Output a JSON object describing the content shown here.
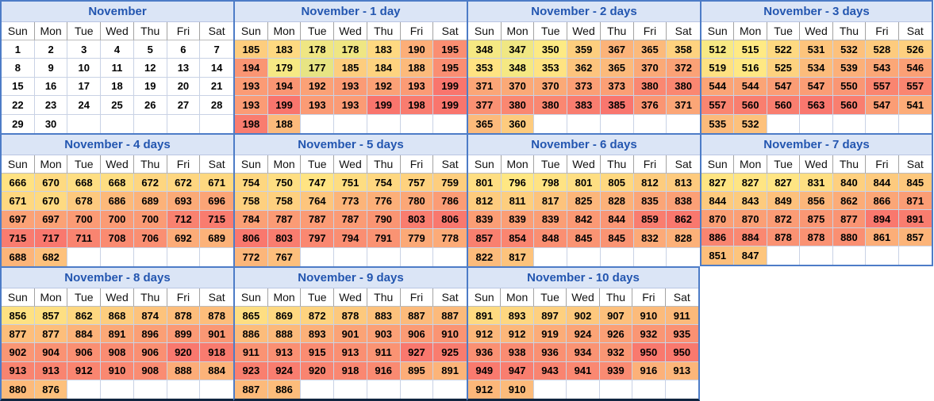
{
  "page": {
    "description": "Calendar heatmap report: November values offset by 0-10 days"
  },
  "colors": {
    "table_border": "#4d7cc7",
    "title_bg": "#dbe5f6",
    "title_text": "#2356b0",
    "cell_separator": "#c9d2e5",
    "weekday_separator": "#a3a3a3",
    "bottom_bar": "#102540",
    "heat_low": "#63BE7B",
    "heat_mid": "#FFEB84",
    "heat_high": "#F8696B"
  },
  "weekdays": [
    "Sun",
    "Mon",
    "Tue",
    "Wed",
    "Thu",
    "Fri",
    "Sat"
  ],
  "chart_data": [
    {
      "type": "table",
      "title": "November",
      "heat": false,
      "columns": [
        "Sun",
        "Mon",
        "Tue",
        "Wed",
        "Thu",
        "Fri",
        "Sat"
      ],
      "rows": [
        [
          1,
          2,
          3,
          4,
          5,
          6,
          7
        ],
        [
          8,
          9,
          10,
          11,
          12,
          13,
          14
        ],
        [
          15,
          16,
          17,
          18,
          19,
          20,
          21
        ],
        [
          22,
          23,
          24,
          25,
          26,
          27,
          28
        ],
        [
          29,
          30,
          null,
          null,
          null,
          null,
          null
        ]
      ]
    },
    {
      "type": "heatmap",
      "title": "November - 1 day",
      "heat": true,
      "columns": [
        "Sun",
        "Mon",
        "Tue",
        "Wed",
        "Thu",
        "Fri",
        "Sat"
      ],
      "rows": [
        [
          185,
          183,
          178,
          178,
          183,
          190,
          195
        ],
        [
          194,
          179,
          177,
          185,
          184,
          188,
          195
        ],
        [
          193,
          194,
          192,
          193,
          192,
          193,
          199
        ],
        [
          193,
          199,
          193,
          193,
          199,
          198,
          199
        ],
        [
          198,
          188,
          null,
          null,
          null,
          null,
          null
        ]
      ]
    },
    {
      "type": "heatmap",
      "title": "November - 2 days",
      "heat": true,
      "columns": [
        "Sun",
        "Mon",
        "Tue",
        "Wed",
        "Thu",
        "Fri",
        "Sat"
      ],
      "rows": [
        [
          348,
          347,
          350,
          359,
          367,
          365,
          358
        ],
        [
          353,
          348,
          353,
          362,
          365,
          370,
          372
        ],
        [
          371,
          370,
          370,
          373,
          373,
          380,
          380
        ],
        [
          377,
          380,
          380,
          383,
          385,
          376,
          371
        ],
        [
          365,
          360,
          null,
          null,
          null,
          null,
          null
        ]
      ]
    },
    {
      "type": "heatmap",
      "title": "November - 3 days",
      "heat": true,
      "columns": [
        "Sun",
        "Mon",
        "Tue",
        "Wed",
        "Thu",
        "Fri",
        "Sat"
      ],
      "rows": [
        [
          512,
          515,
          522,
          531,
          532,
          528,
          526
        ],
        [
          519,
          516,
          525,
          534,
          539,
          543,
          546
        ],
        [
          544,
          544,
          547,
          547,
          550,
          557,
          557
        ],
        [
          557,
          560,
          560,
          563,
          560,
          547,
          541
        ],
        [
          535,
          532,
          null,
          null,
          null,
          null,
          null
        ]
      ]
    },
    {
      "type": "heatmap",
      "title": "November - 4 days",
      "heat": true,
      "columns": [
        "Sun",
        "Mon",
        "Tue",
        "Wed",
        "Thu",
        "Fri",
        "Sat"
      ],
      "rows": [
        [
          666,
          670,
          668,
          668,
          672,
          672,
          671
        ],
        [
          671,
          670,
          678,
          686,
          689,
          693,
          696
        ],
        [
          697,
          697,
          700,
          700,
          700,
          712,
          715
        ],
        [
          715,
          717,
          711,
          708,
          706,
          692,
          689
        ],
        [
          688,
          682,
          null,
          null,
          null,
          null,
          null
        ]
      ]
    },
    {
      "type": "heatmap",
      "title": "November - 5 days",
      "heat": true,
      "columns": [
        "Sun",
        "Mon",
        "Tue",
        "Wed",
        "Thu",
        "Fri",
        "Sat"
      ],
      "rows": [
        [
          754,
          750,
          747,
          751,
          754,
          757,
          759
        ],
        [
          758,
          758,
          764,
          773,
          776,
          780,
          786
        ],
        [
          784,
          787,
          787,
          787,
          790,
          803,
          806
        ],
        [
          806,
          803,
          797,
          794,
          791,
          779,
          778
        ],
        [
          772,
          767,
          null,
          null,
          null,
          null,
          null
        ]
      ]
    },
    {
      "type": "heatmap",
      "title": "November - 6 days",
      "heat": true,
      "columns": [
        "Sun",
        "Mon",
        "Tue",
        "Wed",
        "Thu",
        "Fri",
        "Sat"
      ],
      "rows": [
        [
          801,
          796,
          798,
          801,
          805,
          812,
          813
        ],
        [
          812,
          811,
          817,
          825,
          828,
          835,
          838
        ],
        [
          839,
          839,
          839,
          842,
          844,
          859,
          862
        ],
        [
          857,
          854,
          848,
          845,
          845,
          832,
          828
        ],
        [
          822,
          817,
          null,
          null,
          null,
          null,
          null
        ]
      ]
    },
    {
      "type": "heatmap",
      "title": "November - 7 days",
      "heat": true,
      "columns": [
        "Sun",
        "Mon",
        "Tue",
        "Wed",
        "Thu",
        "Fri",
        "Sat"
      ],
      "rows": [
        [
          827,
          827,
          827,
          831,
          840,
          844,
          845
        ],
        [
          844,
          843,
          849,
          856,
          862,
          866,
          871
        ],
        [
          870,
          870,
          872,
          875,
          877,
          894,
          891
        ],
        [
          886,
          884,
          878,
          878,
          880,
          861,
          857
        ],
        [
          851,
          847,
          null,
          null,
          null,
          null,
          null
        ]
      ]
    },
    {
      "type": "heatmap",
      "title": "November - 8 days",
      "heat": true,
      "columns": [
        "Sun",
        "Mon",
        "Tue",
        "Wed",
        "Thu",
        "Fri",
        "Sat"
      ],
      "rows": [
        [
          856,
          857,
          862,
          868,
          874,
          878,
          878
        ],
        [
          877,
          877,
          884,
          891,
          896,
          899,
          901
        ],
        [
          902,
          904,
          906,
          908,
          906,
          920,
          918
        ],
        [
          913,
          913,
          912,
          910,
          908,
          888,
          884
        ],
        [
          880,
          876,
          null,
          null,
          null,
          null,
          null
        ]
      ]
    },
    {
      "type": "heatmap",
      "title": "November - 9 days",
      "heat": true,
      "columns": [
        "Sun",
        "Mon",
        "Tue",
        "Wed",
        "Thu",
        "Fri",
        "Sat"
      ],
      "rows": [
        [
          865,
          869,
          872,
          878,
          883,
          887,
          887
        ],
        [
          886,
          888,
          893,
          901,
          903,
          906,
          910
        ],
        [
          911,
          913,
          915,
          913,
          911,
          927,
          925
        ],
        [
          923,
          924,
          920,
          918,
          916,
          895,
          891
        ],
        [
          887,
          886,
          null,
          null,
          null,
          null,
          null
        ]
      ]
    },
    {
      "type": "heatmap",
      "title": "November - 10 days",
      "heat": true,
      "columns": [
        "Sun",
        "Mon",
        "Tue",
        "Wed",
        "Thu",
        "Fri",
        "Sat"
      ],
      "rows": [
        [
          891,
          893,
          897,
          902,
          907,
          910,
          911
        ],
        [
          912,
          912,
          919,
          924,
          926,
          932,
          935
        ],
        [
          936,
          938,
          936,
          934,
          932,
          950,
          950
        ],
        [
          949,
          947,
          943,
          941,
          939,
          916,
          913
        ],
        [
          912,
          910,
          null,
          null,
          null,
          null,
          null
        ]
      ]
    }
  ],
  "layout_slots": [
    {
      "index": 0,
      "edges": []
    },
    {
      "index": 1,
      "edges": []
    },
    {
      "index": 2,
      "edges": []
    },
    {
      "index": 3,
      "edges": [
        "right"
      ]
    },
    {
      "index": 4,
      "edges": []
    },
    {
      "index": 5,
      "edges": []
    },
    {
      "index": 6,
      "edges": []
    },
    {
      "index": 7,
      "edges": [
        "right",
        "bottom-blue"
      ]
    },
    {
      "index": 8,
      "edges": [
        "bottom-navy"
      ]
    },
    {
      "index": 9,
      "edges": [
        "bottom-navy"
      ]
    },
    {
      "index": 10,
      "edges": [
        "right",
        "bottom-navy"
      ]
    }
  ]
}
